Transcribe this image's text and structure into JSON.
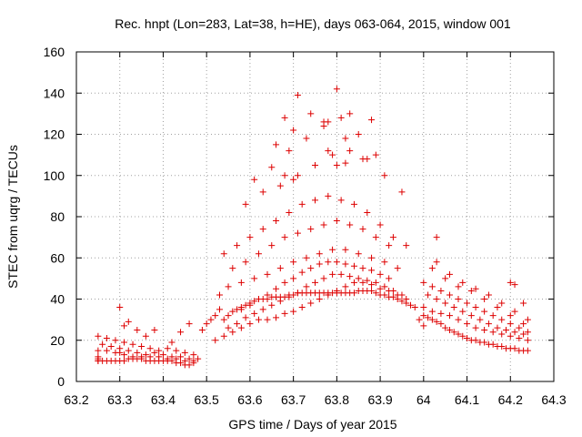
{
  "chart_data": {
    "type": "scatter",
    "title": "Rec. hnpt (Lon=283, Lat=38, h=HE), days 063-064, 2015, window 001",
    "xlabel": "GPS time / Days of year 2015",
    "ylabel": "STEC from uqrg / TECUs",
    "xlim": [
      63.2,
      64.3
    ],
    "ylim": [
      0,
      160
    ],
    "xticks": [
      63.2,
      63.3,
      63.4,
      63.5,
      63.6,
      63.7,
      63.8,
      63.9,
      64.0,
      64.1,
      64.2,
      64.3
    ],
    "xtick_labels": [
      "63.2",
      "63.3",
      "63.4",
      "63.5",
      "63.6",
      "63.7",
      "63.8",
      "63.9",
      "64",
      "64.1",
      "64.2",
      "64.3"
    ],
    "yticks": [
      0,
      20,
      40,
      60,
      80,
      100,
      120,
      140,
      160
    ],
    "ytick_labels": [
      "0",
      "20",
      "40",
      "60",
      "80",
      "100",
      "120",
      "140",
      "160"
    ],
    "grid": true,
    "marker": "+",
    "color": "#dd0000",
    "series": [
      {
        "name": "STEC",
        "x": [
          63.25,
          63.25,
          63.25,
          63.25,
          63.26,
          63.27,
          63.28,
          63.29,
          63.3,
          63.31,
          63.32,
          63.33,
          63.34,
          63.35,
          63.36,
          63.37,
          63.38,
          63.39,
          63.4,
          63.41,
          63.42,
          63.43,
          63.44,
          63.45,
          63.46,
          63.47,
          63.25,
          63.27,
          63.29,
          63.3,
          63.31,
          63.33,
          63.35,
          63.37,
          63.39,
          63.41,
          63.43,
          63.45,
          63.47,
          63.48,
          63.26,
          63.28,
          63.3,
          63.32,
          63.34,
          63.36,
          63.38,
          63.4,
          63.42,
          63.44,
          63.46,
          63.25,
          63.27,
          63.29,
          63.31,
          63.33,
          63.35,
          63.37,
          63.39,
          63.41,
          63.43,
          63.45,
          63.47,
          63.3,
          63.31,
          63.32,
          63.34,
          63.36,
          63.38,
          63.42,
          63.44,
          63.46,
          63.49,
          63.5,
          63.51,
          63.52,
          63.53,
          63.54,
          63.55,
          63.56,
          63.57,
          63.58,
          63.59,
          63.6,
          63.61,
          63.62,
          63.63,
          63.64,
          63.65,
          63.66,
          63.67,
          63.68,
          63.69,
          63.7,
          63.71,
          63.72,
          63.73,
          63.74,
          63.75,
          63.76,
          63.77,
          63.78,
          63.79,
          63.8,
          63.81,
          63.82,
          63.83,
          63.84,
          63.85,
          63.86,
          63.87,
          63.88,
          63.89,
          63.9,
          63.91,
          63.92,
          63.93,
          63.94,
          63.95,
          63.96,
          63.97,
          63.98,
          63.52,
          63.54,
          63.56,
          63.58,
          63.6,
          63.62,
          63.64,
          63.66,
          63.68,
          63.7,
          63.72,
          63.74,
          63.76,
          63.78,
          63.8,
          63.82,
          63.84,
          63.86,
          63.88,
          63.9,
          63.92,
          63.94,
          63.96,
          63.55,
          63.57,
          63.59,
          63.61,
          63.63,
          63.65,
          63.67,
          63.69,
          63.71,
          63.73,
          63.75,
          63.77,
          63.79,
          63.81,
          63.83,
          63.85,
          63.87,
          63.89,
          63.91,
          63.93,
          63.95,
          63.58,
          63.6,
          63.62,
          63.64,
          63.66,
          63.68,
          63.7,
          63.72,
          63.74,
          63.76,
          63.78,
          63.8,
          63.82,
          63.84,
          63.86,
          63.88,
          63.9,
          63.92,
          63.53,
          63.55,
          63.58,
          63.61,
          63.64,
          63.67,
          63.7,
          63.73,
          63.76,
          63.79,
          63.82,
          63.85,
          63.88,
          63.91,
          63.94,
          63.56,
          63.59,
          63.62,
          63.65,
          63.68,
          63.71,
          63.74,
          63.77,
          63.8,
          63.83,
          63.86,
          63.89,
          63.92,
          63.54,
          63.57,
          63.6,
          63.63,
          63.66,
          63.69,
          63.72,
          63.75,
          63.78,
          63.81,
          63.84,
          63.87,
          63.9,
          63.93,
          63.96,
          63.59,
          63.63,
          63.67,
          63.71,
          63.75,
          63.79,
          63.83,
          63.87,
          63.91,
          63.95,
          63.61,
          63.65,
          63.69,
          63.73,
          63.77,
          63.81,
          63.85,
          63.89,
          63.66,
          63.7,
          63.74,
          63.78,
          63.82,
          63.86,
          63.68,
          63.71,
          63.77,
          63.8,
          63.83,
          63.68,
          63.7,
          63.78,
          63.8,
          63.82,
          63.88,
          63.99,
          64.0,
          64.01,
          64.02,
          64.03,
          64.04,
          64.05,
          64.06,
          64.07,
          64.08,
          64.09,
          64.1,
          64.11,
          64.12,
          64.13,
          64.14,
          64.15,
          64.16,
          64.17,
          64.18,
          64.19,
          64.2,
          64.21,
          64.22,
          64.23,
          64.24,
          64.0,
          64.02,
          64.04,
          64.06,
          64.08,
          64.1,
          64.12,
          64.14,
          64.16,
          64.18,
          64.2,
          64.22,
          64.24,
          64.01,
          64.03,
          64.05,
          64.07,
          64.09,
          64.11,
          64.13,
          64.15,
          64.17,
          64.19,
          64.21,
          64.23,
          64.0,
          64.02,
          64.04,
          64.06,
          64.08,
          64.1,
          64.12,
          64.14,
          64.16,
          64.18,
          64.2,
          64.22,
          64.24,
          64.02,
          64.05,
          64.08,
          64.11,
          64.14,
          64.17,
          64.2,
          64.23,
          64.03,
          64.06,
          64.09,
          64.12,
          64.15,
          64.18,
          64.21,
          64.24,
          64.03,
          64.2,
          64.21,
          64.23,
          64.0,
          64.1
        ],
        "y": [
          12,
          11,
          10,
          10,
          10,
          10,
          10,
          10,
          10,
          10,
          11,
          11,
          11,
          11,
          10,
          10,
          10,
          10,
          10,
          10,
          10,
          9,
          9,
          8,
          8,
          9,
          15,
          15,
          14,
          14,
          13,
          12,
          12,
          12,
          12,
          11,
          11,
          10,
          10,
          11,
          18,
          17,
          16,
          15,
          14,
          13,
          14,
          13,
          12,
          12,
          11,
          22,
          21,
          20,
          19,
          18,
          17,
          16,
          15,
          16,
          15,
          14,
          13,
          36,
          27,
          29,
          25,
          22,
          25,
          19,
          24,
          28,
          25,
          28,
          30,
          32,
          35,
          30,
          32,
          34,
          35,
          36,
          37,
          38,
          39,
          40,
          40,
          40,
          41,
          41,
          41,
          41,
          42,
          42,
          43,
          43,
          43,
          43,
          43,
          43,
          43,
          43,
          43,
          43,
          43,
          43,
          43,
          43,
          44,
          44,
          44,
          44,
          43,
          42,
          42,
          41,
          41,
          40,
          39,
          38,
          37,
          36,
          20,
          22,
          24,
          26,
          28,
          30,
          30,
          31,
          33,
          34,
          36,
          38,
          40,
          42,
          44,
          46,
          48,
          48,
          47,
          45,
          44,
          42,
          40,
          26,
          28,
          31,
          33,
          35,
          37,
          39,
          41,
          43,
          46,
          48,
          50,
          52,
          52,
          51,
          50,
          49,
          48,
          46,
          44,
          42,
          35,
          37,
          40,
          42,
          45,
          48,
          50,
          53,
          55,
          57,
          58,
          58,
          57,
          56,
          55,
          54,
          52,
          50,
          42,
          46,
          48,
          50,
          52,
          55,
          58,
          60,
          62,
          64,
          64,
          62,
          60,
          58,
          55,
          55,
          58,
          62,
          66,
          70,
          72,
          74,
          76,
          78,
          76,
          74,
          70,
          66,
          62,
          66,
          70,
          74,
          78,
          82,
          86,
          88,
          90,
          88,
          86,
          82,
          76,
          70,
          66,
          86,
          92,
          95,
          100,
          105,
          110,
          112,
          108,
          100,
          92,
          98,
          104,
          112,
          118,
          124,
          128,
          120,
          110,
          115,
          122,
          130,
          126,
          118,
          108,
          128,
          139,
          126,
          142,
          130,
          100,
          98,
          112,
          105,
          106,
          127,
          30,
          32,
          31,
          30,
          29,
          28,
          26,
          25,
          24,
          23,
          22,
          21,
          20,
          20,
          19,
          19,
          18,
          18,
          17,
          17,
          16,
          16,
          16,
          15,
          15,
          15,
          36,
          34,
          33,
          32,
          30,
          28,
          26,
          25,
          24,
          23,
          22,
          21,
          20,
          42,
          40,
          38,
          36,
          34,
          32,
          30,
          28,
          26,
          25,
          24,
          23,
          48,
          46,
          44,
          42,
          40,
          38,
          36,
          34,
          32,
          30,
          28,
          26,
          24,
          55,
          50,
          46,
          44,
          40,
          36,
          32,
          28,
          58,
          52,
          48,
          45,
          42,
          38,
          34,
          30,
          70,
          48,
          47,
          38,
          27,
          21
        ]
      }
    ]
  }
}
